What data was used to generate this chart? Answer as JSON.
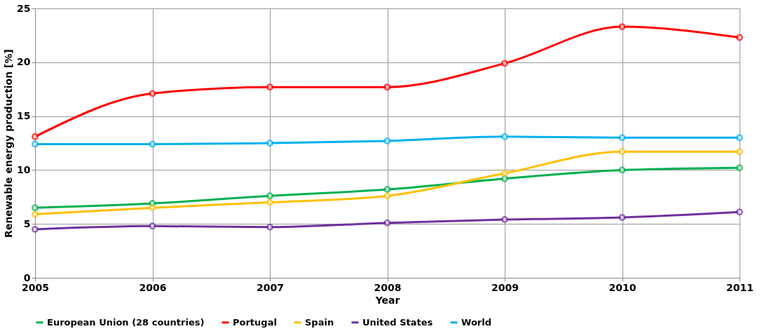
{
  "chart_data": {
    "type": "line",
    "xlabel": "Year",
    "ylabel": "Renewable energy  production [%]",
    "x": [
      2005,
      2006,
      2007,
      2008,
      2009,
      2010,
      2011
    ],
    "xlim": [
      2005,
      2011
    ],
    "xticks": [
      2005,
      2006,
      2007,
      2008,
      2009,
      2010,
      2011
    ],
    "ylim": [
      0,
      25
    ],
    "yticks": [
      0,
      5,
      10,
      15,
      20,
      25
    ],
    "grid": true,
    "legend": "bottom",
    "marker": "circle",
    "line_style": "solid",
    "series": [
      {
        "name": "European Union (28 countries)",
        "color": "#00b050",
        "values": [
          6.5,
          6.9,
          7.6,
          8.2,
          9.2,
          10.0,
          10.2
        ]
      },
      {
        "name": "Portugal",
        "color": "#ff0000",
        "values": [
          13.1,
          17.1,
          17.7,
          17.7,
          19.9,
          23.3,
          22.3
        ]
      },
      {
        "name": "Spain",
        "color": "#ffc000",
        "values": [
          5.9,
          6.5,
          7.0,
          7.6,
          9.7,
          11.7,
          11.7
        ]
      },
      {
        "name": "United States",
        "color": "#7030a0",
        "values": [
          4.5,
          4.8,
          4.7,
          5.1,
          5.4,
          5.6,
          6.1
        ]
      },
      {
        "name": "World",
        "color": "#00b0f0",
        "values": [
          12.4,
          12.4,
          12.5,
          12.7,
          13.1,
          13.0,
          13.0
        ]
      }
    ]
  }
}
